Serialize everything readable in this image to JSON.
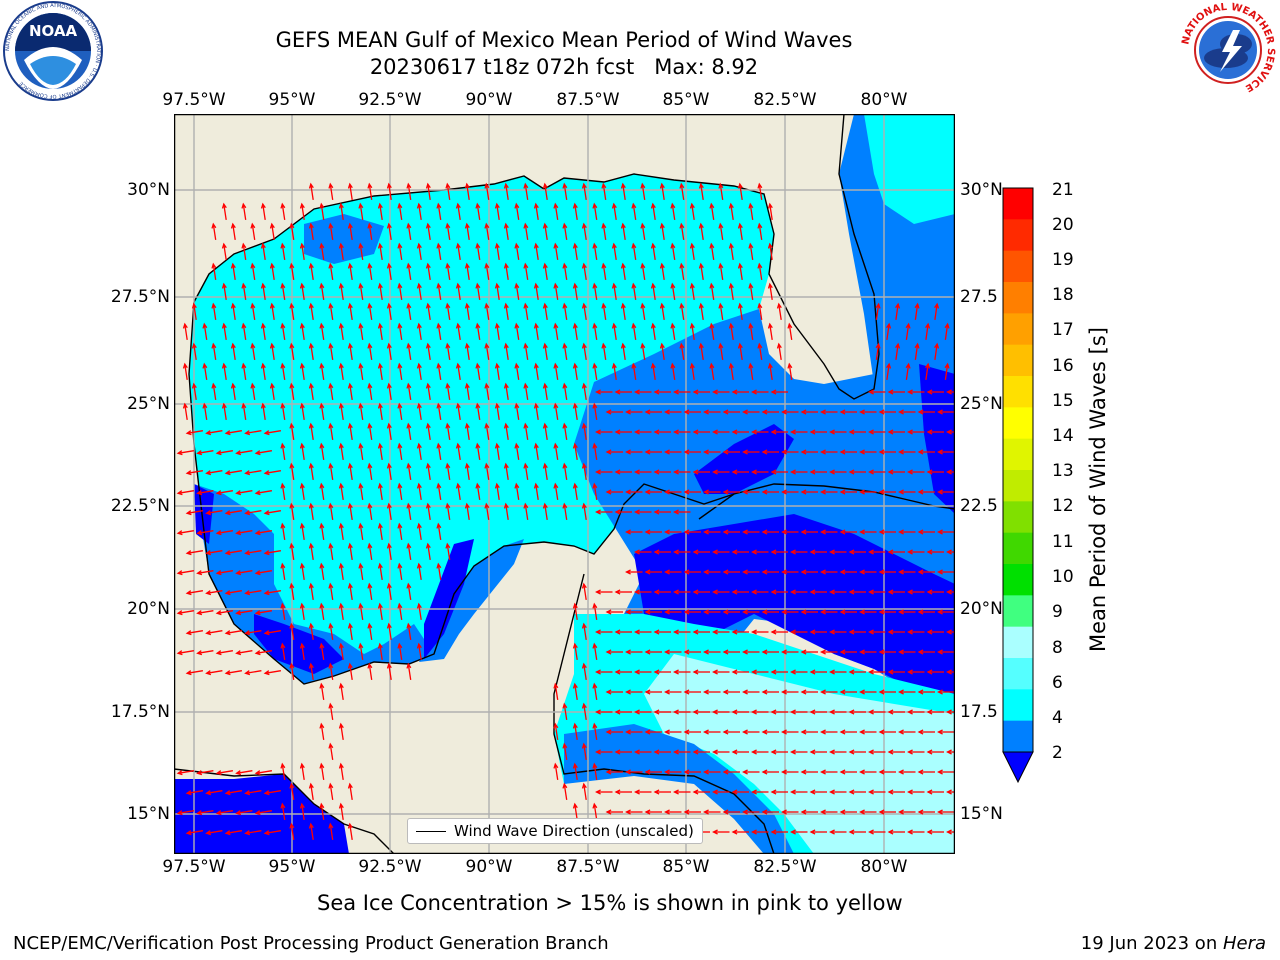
{
  "title_line1": "GEFS MEAN Gulf of Mexico Mean Period of Wind Waves",
  "title_line2": "20230617 t18z 072h fcst   Max: 8.92",
  "lon_ticks": [
    "97.5°W",
    "95°W",
    "92.5°W",
    "90°W",
    "87.5°W",
    "85°W",
    "82.5°W",
    "80°W"
  ],
  "lat_ticks_left": [
    "30°N",
    "27.5°N",
    "25°N",
    "22.5°N",
    "20°N",
    "17.5°N",
    "15°N"
  ],
  "lat_ticks_right": [
    "30°N",
    "27.5",
    "25°N",
    "22.5",
    "20°N",
    "17.5",
    "15°N"
  ],
  "colorbar": {
    "label": "Mean Period of Wind Waves [s]",
    "ticks": [
      "21",
      "20",
      "19",
      "18",
      "17",
      "16",
      "15",
      "14",
      "13",
      "12",
      "11",
      "10",
      "9",
      "8",
      "6",
      "4",
      "2"
    ],
    "colors": [
      "#ff0000",
      "#ff2a00",
      "#ff5500",
      "#ff7f00",
      "#ffa000",
      "#ffbf00",
      "#ffe000",
      "#ffff00",
      "#e0f500",
      "#c0ec00",
      "#80e000",
      "#40d800",
      "#00e000",
      "#40ff80",
      "#aaffff",
      "#55ffff",
      "#00ffff",
      "#0080ff"
    ],
    "extend_color": "#0000ff"
  },
  "legend_label": "Wind Wave Direction (unscaled)",
  "note": "Sea Ice Concentration > 15% is shown in pink to yellow",
  "footer_left": "NCEP/EMC/Verification Post Processing Product Generation Branch",
  "footer_right_date": "19 Jun 2023 on ",
  "footer_right_host": "Hera",
  "logo_left_text": "NOAA",
  "logo_left_ring_text": "NATIONAL OCEANIC AND ATMOSPHERIC ADMINISTRATION · U.S. DEPARTMENT OF COMMERCE",
  "logo_right_ring_text": "NATIONAL WEATHER SERVICE",
  "colors": {
    "land": "#efecdc",
    "ocean_cyan": "#00ffff",
    "ocean_blue": "#0080ff",
    "ocean_dark": "#0000ff",
    "ocean_light": "#aaffff",
    "arrow": "#ff0000",
    "grid": "#b0b0b0"
  }
}
